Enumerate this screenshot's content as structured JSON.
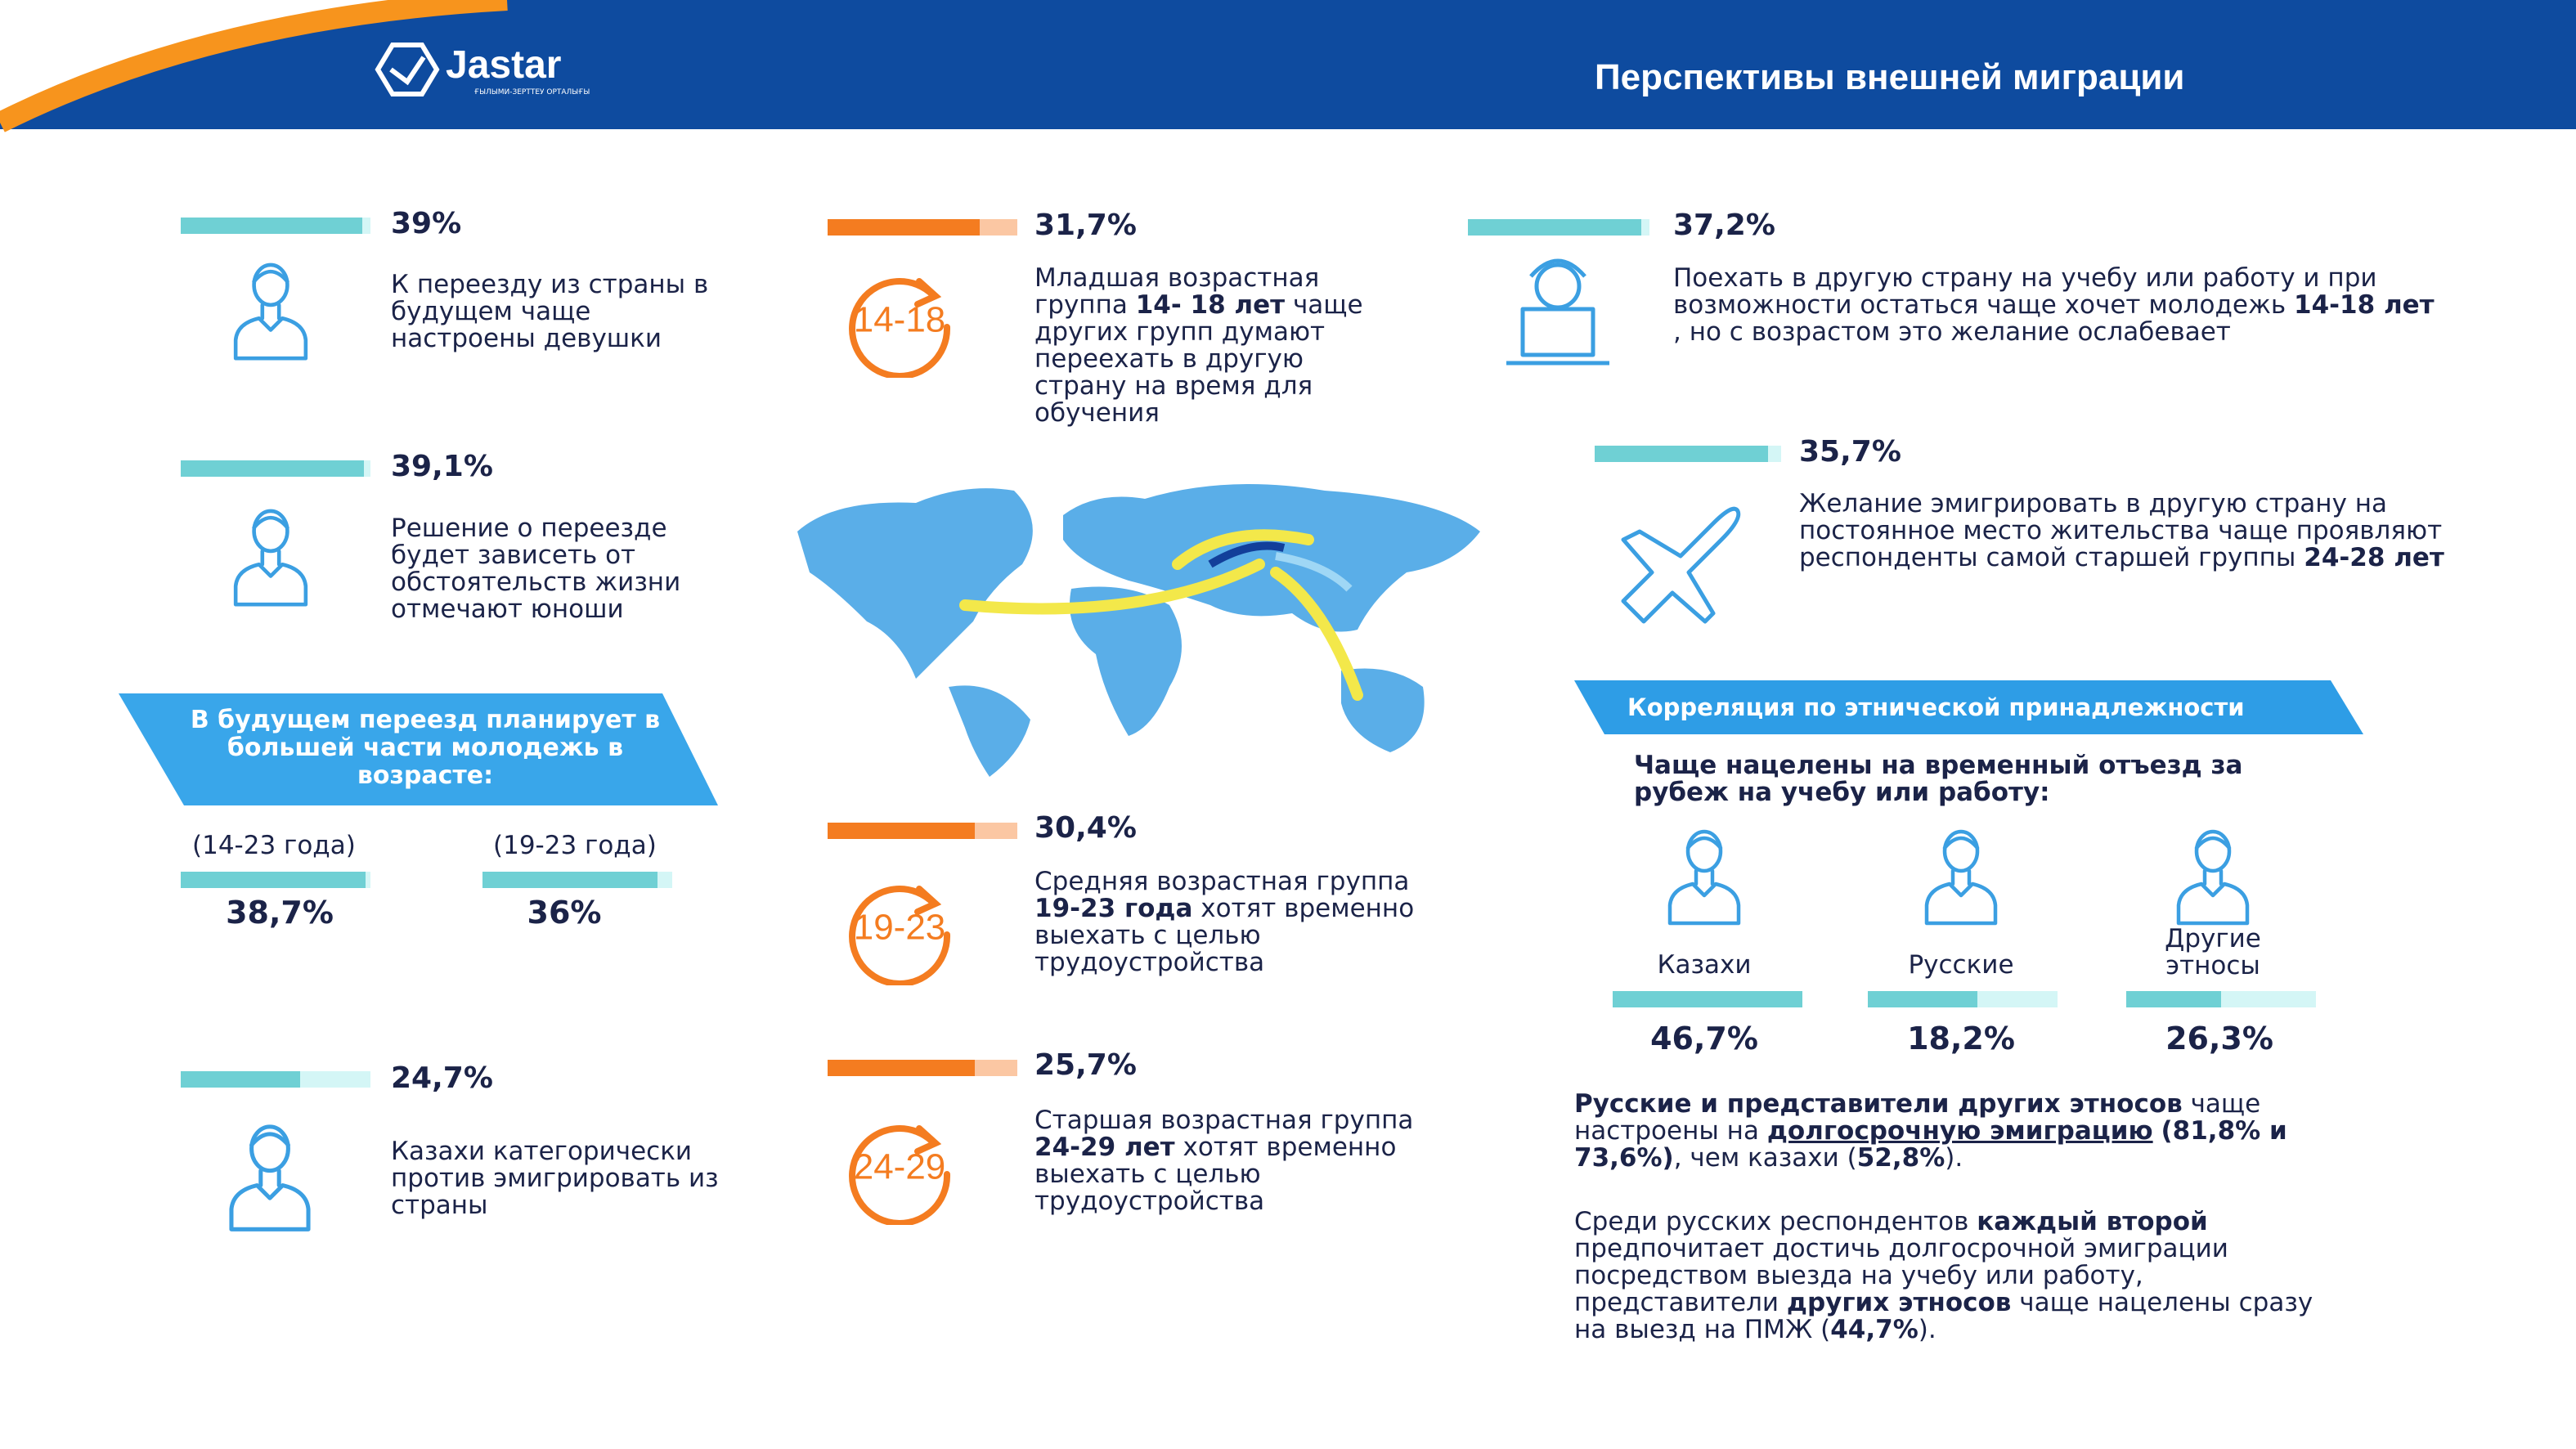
{
  "header": {
    "logo": "Jastar",
    "logo_tagline": "ҒЫЛЫМИ-ЗЕРТТЕУ ОРТАЛЫҒЫ",
    "title": "Перспективы внешней миграции"
  },
  "left": {
    "items": [
      {
        "percent": "39%",
        "text": [
          {
            "text": "К переезду из страны в будущем чаще настроены девушки"
          }
        ]
      },
      {
        "percent": "39,1%",
        "text": [
          {
            "text": "Решение о переезде будет зависеть от обстоятельств жизни отмечают юноши"
          }
        ]
      },
      {
        "percent": "24,7%",
        "text": [
          {
            "text": "Казахи категорически против эмигрировать из страны"
          }
        ]
      }
    ],
    "age_banner": "В будущем переезд планирует в большей части молодежь в возрасте:",
    "age_groups": [
      {
        "label": "(14-23 года)",
        "percent": "38,7%"
      },
      {
        "label": "(19-23 года)",
        "percent": "36%"
      }
    ]
  },
  "middle": {
    "items": [
      {
        "percent": "31,7%",
        "badge": "14-18",
        "text": [
          {
            "text": "Младшая возрастная группа "
          },
          {
            "text": "14- 18 лет",
            "bold": true
          },
          {
            "text": " чаще других групп думают переехать в другую страну на время для обучения"
          }
        ]
      },
      {
        "percent": "30,4%",
        "badge": "19-23",
        "text": [
          {
            "text": "Средняя возрастная группа "
          },
          {
            "text": "19-23 года",
            "bold": true
          },
          {
            "text": " хотят временно выехать с целью трудоустройства"
          }
        ]
      },
      {
        "percent": "25,7%",
        "badge": "24-29",
        "text": [
          {
            "text": "Старшая возрастная группа "
          },
          {
            "text": "24-29 лет",
            "bold": true
          },
          {
            "text": " хотят временно выехать с целью трудоустройства"
          }
        ]
      }
    ]
  },
  "right": {
    "items": [
      {
        "percent": "37,2%",
        "text": [
          {
            "text": "Поехать в другую страну на учебу или работу и при возможности остаться чаще хочет молодежь "
          },
          {
            "text": "14-18 лет",
            "bold": true
          },
          {
            "text": " , но с возрастом это желание ослабевает"
          }
        ]
      },
      {
        "percent": "35,7%",
        "text": [
          {
            "text": "Желание эмигрировать в другую страну на постоянное место жительства чаще проявляют респонденты самой старшей группы "
          },
          {
            "text": "24-28 лет",
            "bold": true
          }
        ]
      }
    ],
    "ethnic_banner": "Корреляция по этнической принадлежности",
    "ethnic_heading": "Чаще нацелены на временный отъезд за рубеж на учебу или работу:",
    "ethnic_groups": [
      {
        "label": "Казахи",
        "percent": "46,7%"
      },
      {
        "label": "Русские",
        "percent": "18,2%"
      },
      {
        "label": "Другие этносы",
        "percent": "26,3%"
      }
    ],
    "notes": [
      [
        {
          "text": "Русские и представители других этносов",
          "bold": true
        },
        {
          "text": " чаще настроены на "
        },
        {
          "text": "долгосрочную эмиграцию",
          "bold": true,
          "underline": true
        },
        {
          "text": " "
        },
        {
          "text": "(81,8% и 73,6%)",
          "bold": true
        },
        {
          "text": ", чем казахи ("
        },
        {
          "text": "52,8%",
          "bold": true
        },
        {
          "text": ")."
        }
      ],
      [
        {
          "text": "Среди русских респондентов "
        },
        {
          "text": "каждый второй",
          "bold": true
        },
        {
          "text": " предпочитает достичь долгосрочной эмиграции посредством выезда на учебу или работу, представители "
        },
        {
          "text": "других этносов",
          "bold": true
        },
        {
          "text": " чаще нацелены сразу на выезд на ПМЖ ("
        },
        {
          "text": "44,7%",
          "bold": true
        },
        {
          "text": ")."
        }
      ]
    ]
  }
}
